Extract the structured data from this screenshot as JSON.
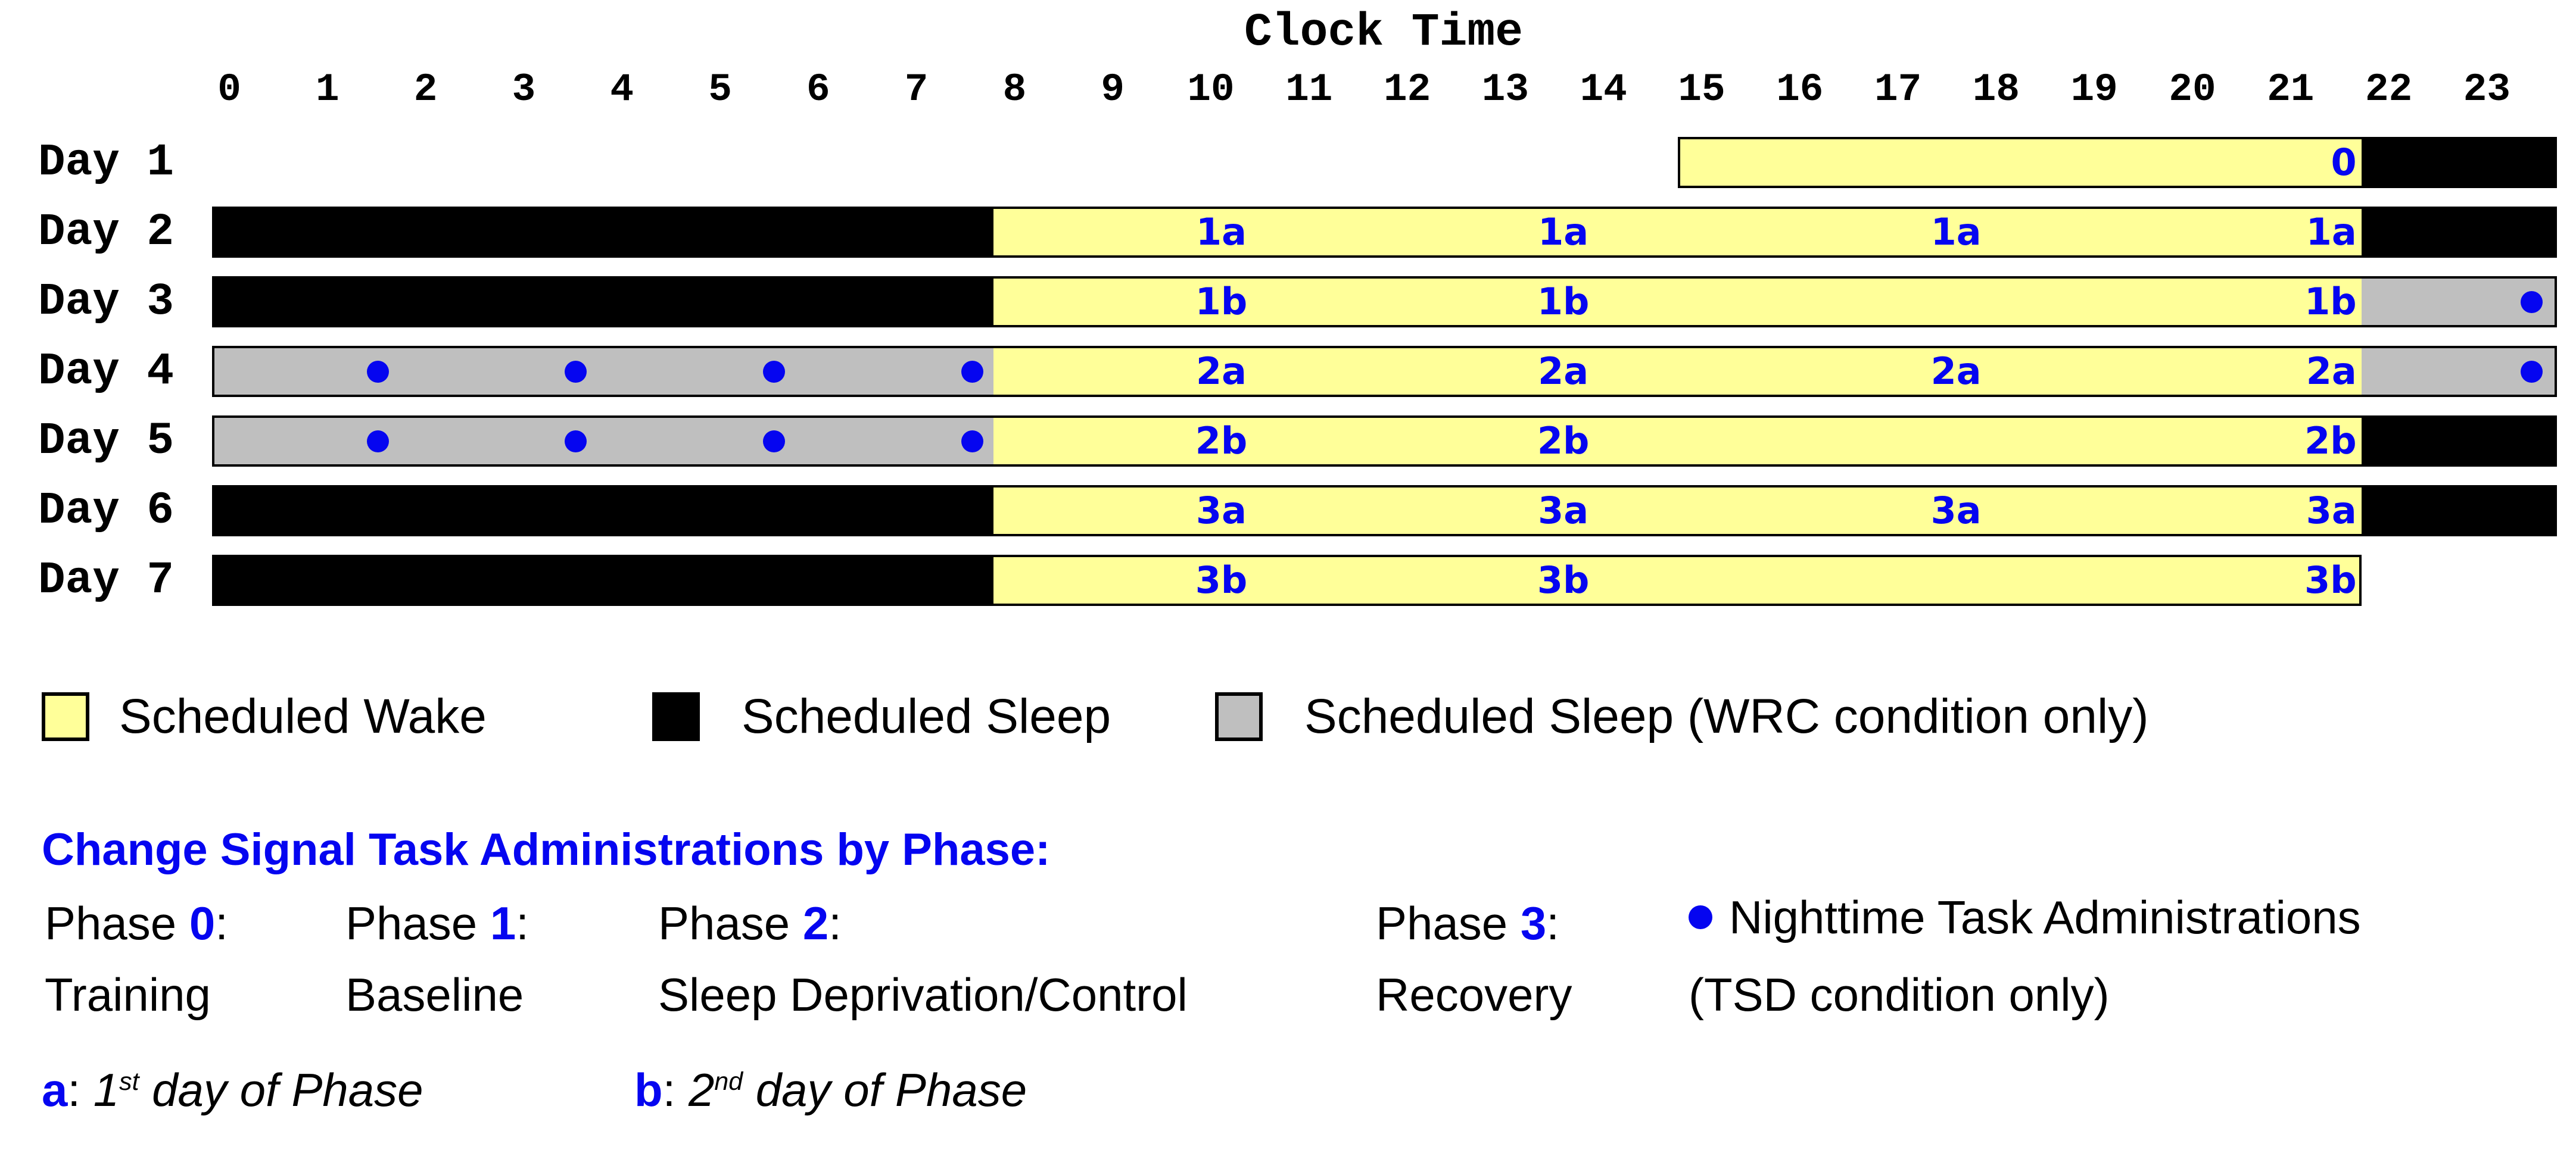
{
  "colors": {
    "wake_yellow": "#FFFF99",
    "sleep_black": "#000000",
    "wrc_gray": "#BFBFBF",
    "accent_blue": "#0505F0"
  },
  "chart_data": {
    "type": "gantt-schedule",
    "title": "Clock Time",
    "x_axis": {
      "label": "Clock Time",
      "unit": "hour of day",
      "range": [
        0,
        24
      ],
      "ticks": [
        "0",
        "1",
        "2",
        "3",
        "4",
        "5",
        "6",
        "7",
        "8",
        "9",
        "10",
        "11",
        "12",
        "13",
        "14",
        "15",
        "16",
        "17",
        "18",
        "19",
        "20",
        "21",
        "22",
        "23"
      ]
    },
    "legend_note": "segments state per hour range; wake=Scheduled Wake, sleep=Scheduled Sleep, wrc=Scheduled Sleep (WRC condition only); dots=Nighttime Task Administrations (TSD condition only), given as clock-time positions",
    "rows": [
      {
        "label": "Day 1",
        "segments": [
          {
            "state": "wake",
            "start": 15,
            "end": 22
          },
          {
            "state": "sleep",
            "start": 22,
            "end": 24
          }
        ],
        "dots": [],
        "task_labels": [
          {
            "text": "0",
            "t": 21.95,
            "anchor": "right"
          }
        ]
      },
      {
        "label": "Day 2",
        "segments": [
          {
            "state": "sleep",
            "start": 0,
            "end": 8
          },
          {
            "state": "wake",
            "start": 8,
            "end": 22
          },
          {
            "state": "sleep",
            "start": 22,
            "end": 24
          }
        ],
        "dots": [],
        "task_labels": [
          {
            "text": "1a",
            "t": 10.33,
            "anchor": "center"
          },
          {
            "text": "1a",
            "t": 13.83,
            "anchor": "center"
          },
          {
            "text": "1a",
            "t": 17.85,
            "anchor": "center"
          },
          {
            "text": "1a",
            "t": 21.95,
            "anchor": "right"
          }
        ]
      },
      {
        "label": "Day 3",
        "segments": [
          {
            "state": "sleep",
            "start": 0,
            "end": 8
          },
          {
            "state": "wake",
            "start": 8,
            "end": 22
          },
          {
            "state": "wrc",
            "start": 22,
            "end": 24
          }
        ],
        "dots": [
          23.74
        ],
        "task_labels": [
          {
            "text": "1b",
            "t": 10.33,
            "anchor": "center"
          },
          {
            "text": "1b",
            "t": 13.83,
            "anchor": "center"
          },
          {
            "text": "1b",
            "t": 21.95,
            "anchor": "right"
          }
        ]
      },
      {
        "label": "Day 4",
        "segments": [
          {
            "state": "wrc",
            "start": 0,
            "end": 8
          },
          {
            "state": "wake",
            "start": 8,
            "end": 22
          },
          {
            "state": "wrc",
            "start": 22,
            "end": 24
          }
        ],
        "dots": [
          1.7,
          3.72,
          5.75,
          7.78,
          23.74
        ],
        "task_labels": [
          {
            "text": "2a",
            "t": 10.33,
            "anchor": "center"
          },
          {
            "text": "2a",
            "t": 13.83,
            "anchor": "center"
          },
          {
            "text": "2a",
            "t": 17.85,
            "anchor": "center"
          },
          {
            "text": "2a",
            "t": 21.95,
            "anchor": "right"
          }
        ]
      },
      {
        "label": "Day 5",
        "segments": [
          {
            "state": "wrc",
            "start": 0,
            "end": 8
          },
          {
            "state": "wake",
            "start": 8,
            "end": 22
          },
          {
            "state": "sleep",
            "start": 22,
            "end": 24
          }
        ],
        "dots": [
          1.7,
          3.72,
          5.75,
          7.78
        ],
        "task_labels": [
          {
            "text": "2b",
            "t": 10.33,
            "anchor": "center"
          },
          {
            "text": "2b",
            "t": 13.83,
            "anchor": "center"
          },
          {
            "text": "2b",
            "t": 21.95,
            "anchor": "right"
          }
        ]
      },
      {
        "label": "Day 6",
        "segments": [
          {
            "state": "sleep",
            "start": 0,
            "end": 8
          },
          {
            "state": "wake",
            "start": 8,
            "end": 22
          },
          {
            "state": "sleep",
            "start": 22,
            "end": 24
          }
        ],
        "dots": [],
        "task_labels": [
          {
            "text": "3a",
            "t": 10.33,
            "anchor": "center"
          },
          {
            "text": "3a",
            "t": 13.83,
            "anchor": "center"
          },
          {
            "text": "3a",
            "t": 17.85,
            "anchor": "center"
          },
          {
            "text": "3a",
            "t": 21.95,
            "anchor": "right"
          }
        ]
      },
      {
        "label": "Day 7",
        "segments": [
          {
            "state": "sleep",
            "start": 0,
            "end": 8
          },
          {
            "state": "wake",
            "start": 8,
            "end": 22
          }
        ],
        "dots": [],
        "task_labels": [
          {
            "text": "3b",
            "t": 10.33,
            "anchor": "center"
          },
          {
            "text": "3b",
            "t": 13.83,
            "anchor": "center"
          },
          {
            "text": "3b",
            "t": 21.95,
            "anchor": "right"
          }
        ]
      }
    ]
  },
  "legend": {
    "items": [
      {
        "swatch": "wake",
        "label": "Scheduled Wake"
      },
      {
        "swatch": "sleep",
        "label": "Scheduled Sleep"
      },
      {
        "swatch": "wrc",
        "label": "Scheduled Sleep (WRC condition only)"
      }
    ]
  },
  "phases": {
    "heading": "Change Signal Task Administrations by Phase:",
    "items": [
      {
        "prefix": "Phase ",
        "num": "0",
        "suffix": ":",
        "name": "Training"
      },
      {
        "prefix": "Phase ",
        "num": "1",
        "suffix": ":",
        "name": "Baseline"
      },
      {
        "prefix": "Phase ",
        "num": "2",
        "suffix": ":",
        "name": "Sleep Deprivation/Control"
      },
      {
        "prefix": "Phase ",
        "num": "3",
        "suffix": ":",
        "name": "Recovery"
      }
    ],
    "nighttime_note": {
      "line1": "Nighttime Task Administrations",
      "line2": "(TSD condition only)"
    }
  },
  "footnotes": [
    {
      "key": "a",
      "sep": ": ",
      "ordinal": "1",
      "sup": "st",
      "rest": " day of Phase"
    },
    {
      "key": "b",
      "sep": ": ",
      "ordinal": "2",
      "sup": "nd",
      "rest": " day of Phase"
    }
  ]
}
